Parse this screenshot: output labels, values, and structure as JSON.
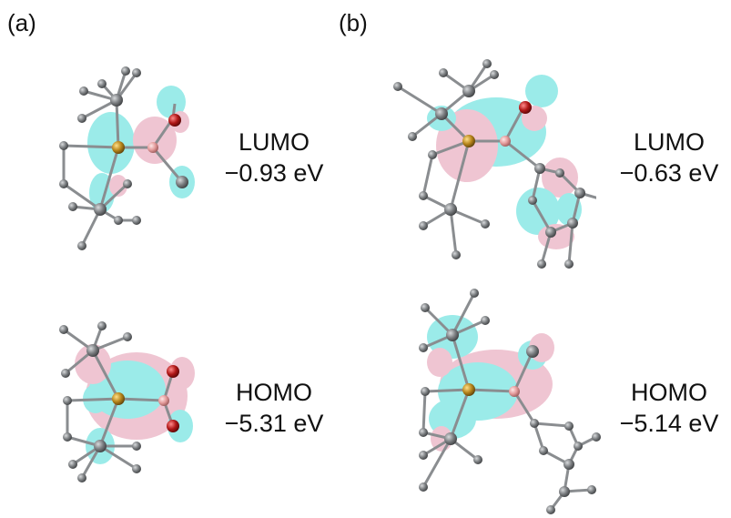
{
  "panels": [
    {
      "label": "(a)",
      "orbitals": [
        {
          "name": "LUMO",
          "energy": "−0.93 eV"
        },
        {
          "name": "HOMO",
          "energy": "−5.31 eV"
        }
      ]
    },
    {
      "label": "(b)",
      "orbitals": [
        {
          "name": "LUMO",
          "energy": "−0.63 eV"
        },
        {
          "name": "HOMO",
          "energy": "−5.14 eV"
        }
      ]
    }
  ],
  "colors": {
    "lobe_cyan": "#5fe0dc",
    "lobe_pink": "#e6a3b8",
    "atom_carbon": "#7a7d80",
    "atom_oxygen": "#b01818",
    "atom_boron": "#e39a9a",
    "atom_phosphorus": "#b8861c",
    "bond": "#8a8d90"
  }
}
